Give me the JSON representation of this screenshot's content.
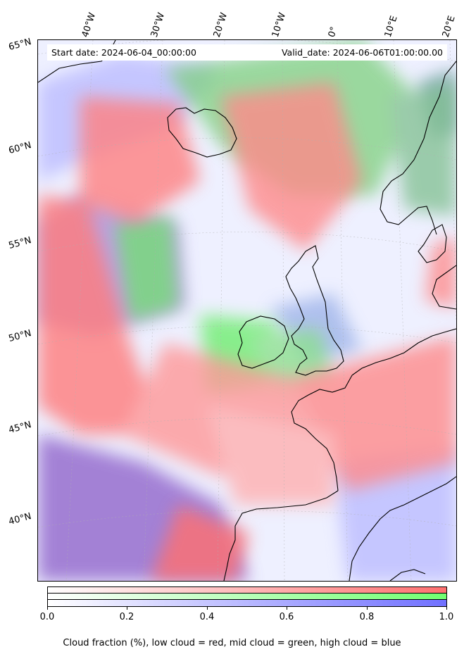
{
  "header": {
    "start_date": "Start date: 2024-06-04_00:00:00",
    "valid_date": "Valid_date: 2024-06-06T01:00:00.00"
  },
  "lon_labels": [
    "40°W",
    "30°W",
    "20°W",
    "10°W",
    "0°",
    "10°E",
    "20°E"
  ],
  "lat_labels": [
    "65°N",
    "60°N",
    "55°N",
    "50°N",
    "45°N",
    "40°N"
  ],
  "colorbar": {
    "ticks": [
      "0.0",
      "0.2",
      "0.4",
      "0.6",
      "0.8",
      "1.0"
    ],
    "colors": {
      "low": "#ff7070",
      "mid": "#70ff70",
      "high": "#7070ff"
    }
  },
  "caption": "Cloud fraction (%), low cloud = red, mid cloud = green, high cloud = blue"
}
